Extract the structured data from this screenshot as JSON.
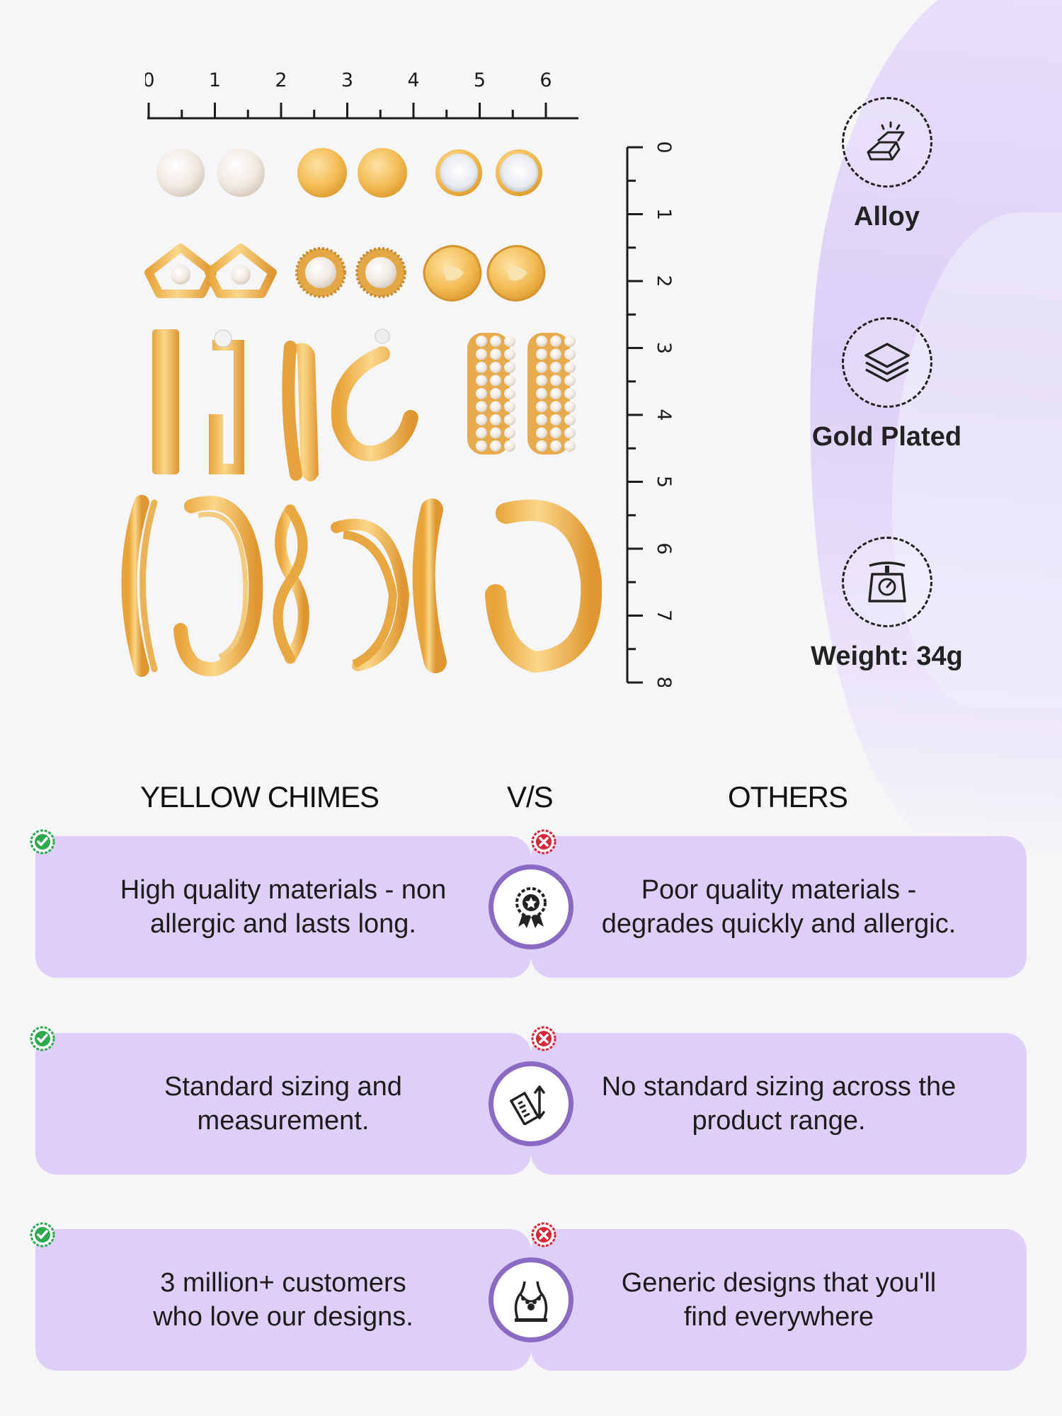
{
  "ruler_horizontal": {
    "ticks": [
      "0",
      "1",
      "2",
      "3",
      "4",
      "5",
      "6"
    ]
  },
  "ruler_vertical": {
    "ticks": [
      "0",
      "1",
      "2",
      "3",
      "4",
      "5",
      "6",
      "7",
      "8"
    ]
  },
  "features": [
    {
      "icon": "gold-bars-icon",
      "label": "Alloy"
    },
    {
      "icon": "layers-icon",
      "label": "Gold Plated"
    },
    {
      "icon": "weighing-scale-icon",
      "label": "Weight: 34g"
    }
  ],
  "comparison": {
    "brand": "YELLOW CHIMES",
    "vs": "V/S",
    "others": "OTHERS",
    "rows": [
      {
        "icon": "quality-badge-icon",
        "ours": [
          "High quality materials - non",
          "allergic and lasts long."
        ],
        "theirs": [
          "Poor quality materials -",
          "degrades quickly and allergic."
        ]
      },
      {
        "icon": "ruler-measure-icon",
        "ours": [
          "Standard sizing and",
          "measurement."
        ],
        "theirs": [
          "No standard sizing across the",
          "product range."
        ]
      },
      {
        "icon": "jewellery-bust-icon",
        "ours": [
          "3 million+ customers",
          "who love our designs."
        ],
        "theirs": [
          "Generic designs that you'll",
          "find everywhere"
        ]
      }
    ]
  },
  "colors": {
    "panel": "#ddcff8",
    "accent_ring": "#8a6ac2",
    "check": "#2fa84f",
    "cross": "#d62839",
    "gold": "#f0b548"
  }
}
